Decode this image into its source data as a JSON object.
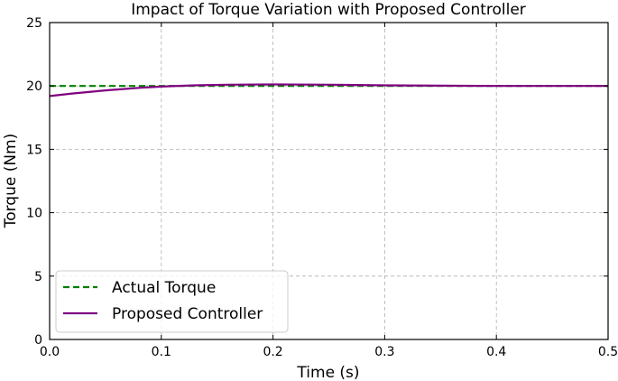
{
  "chart_data": {
    "type": "line",
    "title": "Impact of Torque Variation with Proposed Controller",
    "xlabel": "Time (s)",
    "ylabel": "Torque (Nm)",
    "xlim": [
      0,
      0.5
    ],
    "ylim": [
      0,
      25
    ],
    "xticks": [
      0.0,
      0.1,
      0.2,
      0.3,
      0.4,
      0.5
    ],
    "xtick_labels": [
      "0.0",
      "0.1",
      "0.2",
      "0.3",
      "0.4",
      "0.5"
    ],
    "yticks": [
      0,
      5,
      10,
      15,
      20,
      25
    ],
    "ytick_labels": [
      "0",
      "5",
      "10",
      "15",
      "20",
      "25"
    ],
    "grid": true,
    "legend_position": "lower-left",
    "series": [
      {
        "name": "Actual Torque",
        "style": "dashed",
        "color": "#008000",
        "x": [
          0.0,
          0.5
        ],
        "y": [
          20.0,
          20.0
        ]
      },
      {
        "name": "Proposed Controller",
        "style": "solid",
        "color": "#800080",
        "x": [
          0.0,
          0.02,
          0.05,
          0.08,
          0.1,
          0.13,
          0.16,
          0.2,
          0.25,
          0.3,
          0.35,
          0.4,
          0.45,
          0.5
        ],
        "y": [
          19.2,
          19.4,
          19.65,
          19.85,
          19.95,
          20.05,
          20.1,
          20.12,
          20.1,
          20.05,
          20.02,
          20.0,
          20.0,
          20.0
        ]
      }
    ]
  }
}
